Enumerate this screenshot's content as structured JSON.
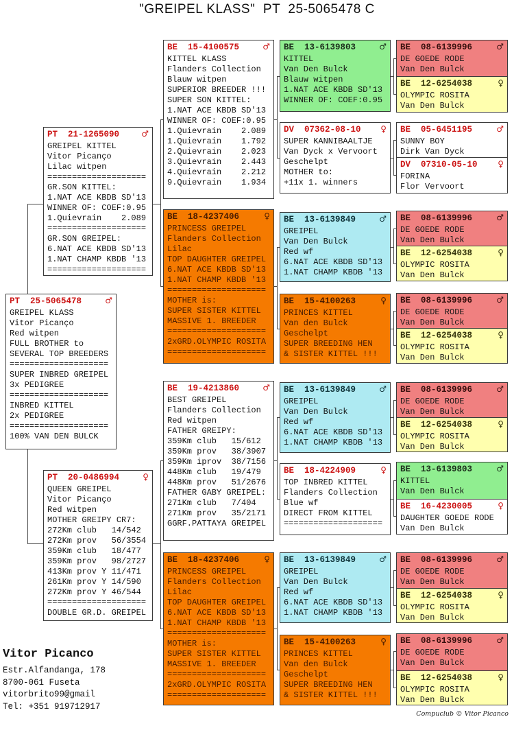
{
  "title": "\"GREIPEL KLASS\"  PT  25-5065478 C",
  "colors": {
    "orange": "#F57A00",
    "green": "#90EE90",
    "cyan": "#AEEAF2",
    "pink": "#F08080",
    "yellow": "#FFFFAE",
    "ring_red": "#CC1414",
    "line": "#4A4A4A"
  },
  "footer": {
    "name": "Vitor Picanco",
    "address1": "Estr.Alfandanga, 178",
    "address2": "8700-061 Fuseta",
    "email": "vitorbrito99@gmail",
    "phone": "Tel: +351 919712917",
    "credit": "Compuclub © Vitor Picanco"
  },
  "boxes": [
    {
      "id": "subject",
      "ring": "PT  25-5065478",
      "sex": "♂",
      "color": "white",
      "lines": [
        "GREIPEL KLASS",
        "Vitor Picanço",
        "Red witpen",
        "FULL BROTHER to",
        "SEVERAL TOP BREEDERS",
        "====================",
        "SUPER INBRED GREIPEL",
        "3x PEDIGREE",
        "====================",
        "INBRED KITTEL",
        "2x PEDIGREE",
        "====================",
        "100% VAN DEN BULCK"
      ]
    },
    {
      "id": "sire",
      "ring": "PT  21-1265090",
      "sex": "♂",
      "color": "white",
      "lines": [
        "GREIPEL KITTEL",
        "Vitor Picanço",
        "Lilac witpen",
        "====================",
        "GR.SON KITTEL:",
        "1.NAT ACE KBDB SD'13",
        "WINNER OF: COEF:0.95",
        "1.Quievrain    2.089",
        "====================",
        "GR.SON GREIPEL:",
        "6.NAT ACE KBDB SD'13",
        "1.NAT CHAMP KBDB '13",
        "===================="
      ]
    },
    {
      "id": "dam",
      "ring": "PT  20-0486994",
      "sex": "♀",
      "color": "white",
      "lines": [
        "QUEEN GREIPEL",
        "Vitor Picanço",
        "Red witpen",
        "MOTHER GREIPY CR7:",
        "272Km club   14/542",
        "272Km prov   56/3554",
        "359Km club   18/477",
        "359Km prov   98/2727",
        "413Km prov Y 11/471",
        "261Km prov Y 14/590",
        "272Km prov Y 46/544",
        "====================",
        "DOUBLE GR.D. GREIPEL"
      ]
    },
    {
      "id": "g1",
      "ring": "BE  15-4100575",
      "sex": "♂",
      "color": "white",
      "lines": [
        "KITTEL KLASS",
        "Flanders Collection",
        "Blauw witpen",
        "SUPERIOR BREEDER !!!",
        "SUPER SON KITTEL:",
        "1.NAT ACE KBDB SD'13",
        "WINNER OF: COEF:0.95",
        "1.Quievrain    2.089",
        "1.Quievrain    1.792",
        "2.Quievrain    2.023",
        "3.Quievrain    2.443",
        "4.Quievrain    2.212",
        "9.Quievrain    1.934"
      ]
    },
    {
      "id": "g2",
      "ring": "BE  18-4237406",
      "sex": "♀",
      "color": "orange",
      "lines": [
        "PRINCESS GREIPEL",
        "Flanders Collection",
        "Lilac",
        "TOP DAUGHTER GREIPEL",
        "6.NAT ACE KBDB SD'13",
        "1.NAT CHAMP KBDB '13",
        "====================",
        "MOTHER is:",
        "SUPER SISTER KITTEL",
        "MASSIVE 1. BREEDER",
        "====================",
        "2xGRD.OLYMPIC ROSITA",
        "===================="
      ]
    },
    {
      "id": "g3",
      "ring": "BE  19-4213860",
      "sex": "♂",
      "color": "white",
      "lines": [
        "BEST GREIPEL",
        "Flanders Collection",
        "Red witpen",
        "FATHER GREIPY:",
        "359Km club   15/612",
        "359Km prov   38/3907",
        "359Km iprov  38/7156",
        "448Km club   19/479",
        "448Km prov   51/2676",
        "FATHER GABY GREIPEL:",
        "271Km club   7/404",
        "271Km prov   35/2171",
        "GGRF.PATTAYA GREIPEL"
      ]
    },
    {
      "id": "g4",
      "ring": "BE  18-4237406",
      "sex": "♀",
      "color": "orange",
      "lines": [
        "PRINCESS GREIPEL",
        "Flanders Collection",
        "Lilac",
        "TOP DAUGHTER GREIPEL",
        "6.NAT ACE KBDB SD'13",
        "1.NAT CHAMP KBDB '13",
        "====================",
        "MOTHER is:",
        "SUPER SISTER KITTEL",
        "MASSIVE 1. BREEDER",
        "====================",
        "2xGRD.OLYMPIC ROSITA",
        "===================="
      ]
    },
    {
      "id": "gg1",
      "ring": "BE  13-6139803",
      "sex": "♂",
      "color": "green",
      "lines": [
        "KITTEL",
        "Van Den Bulck",
        "Blauw witpen",
        "1.NAT ACE KBDB SD'13",
        "WINNER OF: COEF:0.95"
      ]
    },
    {
      "id": "gg2",
      "ring": "DV  07362-08-10",
      "sex": "♀",
      "color": "white",
      "lines": [
        "SUPER KANNIBAALTJE",
        "Van Dyck x Vervoort",
        "Geschelpt",
        "MOTHER to:",
        "+11x 1. winners"
      ]
    },
    {
      "id": "gg3",
      "ring": "BE  13-6139849",
      "sex": "♂",
      "color": "cyan",
      "lines": [
        "GREIPEL",
        "Van Den Bulck",
        "Red wf",
        "6.NAT ACE KBDB SD'13",
        "1.NAT CHAMP KBDB '13"
      ]
    },
    {
      "id": "gg4",
      "ring": "BE  15-4100263",
      "sex": "♀",
      "color": "orange",
      "lines": [
        "PRINCES KITTEL",
        "Van den Bulck",
        "Geschelpt",
        "SUPER BREEDING HEN",
        "& SISTER KITTEL !!!"
      ]
    },
    {
      "id": "gg5",
      "ring": "BE  13-6139849",
      "sex": "♂",
      "color": "cyan",
      "lines": [
        "GREIPEL",
        "Van Den Bulck",
        "Red wf",
        "6.NAT ACE KBDB SD'13",
        "1.NAT CHAMP KBDB '13"
      ]
    },
    {
      "id": "gg6",
      "ring": "BE  18-4224909",
      "sex": "♀",
      "color": "white",
      "lines": [
        "TOP INBRED KITTEL",
        "Flanders Collection",
        "Blue wf",
        "DIRECT FROM KITTEL",
        "===================="
      ]
    },
    {
      "id": "gg7",
      "ring": "BE  13-6139849",
      "sex": "♂",
      "color": "cyan",
      "lines": [
        "GREIPEL",
        "Van Den Bulck",
        "Red wf",
        "6.NAT ACE KBDB SD'13",
        "1.NAT CHAMP KBDB '13"
      ]
    },
    {
      "id": "gg8",
      "ring": "BE  15-4100263",
      "sex": "♀",
      "color": "orange",
      "lines": [
        "PRINCES KITTEL",
        "Van den Bulck",
        "Geschelpt",
        "SUPER BREEDING HEN",
        "& SISTER KITTEL !!!"
      ]
    },
    {
      "id": "ggg1",
      "ring": "BE  08-6139996",
      "sex": "♂",
      "color": "pink",
      "lines": [
        "DE GOEDE RODE",
        "Van Den Bulck"
      ]
    },
    {
      "id": "ggg2",
      "ring": "BE  12-6254038",
      "sex": "♀",
      "color": "yellow",
      "lines": [
        "OLYMPIC ROSITA",
        "Van Den Bulck"
      ]
    },
    {
      "id": "ggg3",
      "ring": "BE  05-6451195",
      "sex": "♂",
      "color": "white",
      "lines": [
        "SUNNY BOY",
        "Dirk Van Dyck"
      ]
    },
    {
      "id": "ggg4",
      "ring": "DV  07310-05-10",
      "sex": "♀",
      "color": "white",
      "lines": [
        "FORINA",
        "Flor Vervoort"
      ]
    },
    {
      "id": "ggg5",
      "ring": "BE  08-6139996",
      "sex": "♂",
      "color": "pink",
      "lines": [
        "DE GOEDE RODE",
        "Van Den Bulck"
      ]
    },
    {
      "id": "ggg6",
      "ring": "BE  12-6254038",
      "sex": "♀",
      "color": "yellow",
      "lines": [
        "OLYMPIC ROSITA",
        "Van Den Bulck"
      ]
    },
    {
      "id": "ggg7",
      "ring": "BE  08-6139996",
      "sex": "♂",
      "color": "pink",
      "lines": [
        "DE GOEDE RODE",
        "Van Den Bulck"
      ]
    },
    {
      "id": "ggg8",
      "ring": "BE  12-6254038",
      "sex": "♀",
      "color": "yellow",
      "lines": [
        "OLYMPIC ROSITA",
        "Van Den Bulck"
      ]
    },
    {
      "id": "ggg9",
      "ring": "BE  08-6139996",
      "sex": "♂",
      "color": "pink",
      "lines": [
        "DE GOEDE RODE",
        "Van Den Bulck"
      ]
    },
    {
      "id": "ggg10",
      "ring": "BE  12-6254038",
      "sex": "♀",
      "color": "yellow",
      "lines": [
        "OLYMPIC ROSITA",
        "Van Den Bulck"
      ]
    },
    {
      "id": "ggg11",
      "ring": "BE  13-6139803",
      "sex": "♂",
      "color": "green",
      "lines": [
        "KITTEL",
        "Van Den Bulck"
      ]
    },
    {
      "id": "ggg12",
      "ring": "BE  16-4230005",
      "sex": "♀",
      "color": "white",
      "lines": [
        "DAUGHTER GOEDE RODE",
        "Van Den Bulck"
      ]
    },
    {
      "id": "ggg13",
      "ring": "BE  08-6139996",
      "sex": "♂",
      "color": "pink",
      "lines": [
        "DE GOEDE RODE",
        "Van Den Bulck"
      ]
    },
    {
      "id": "ggg14",
      "ring": "BE  12-6254038",
      "sex": "♀",
      "color": "yellow",
      "lines": [
        "OLYMPIC ROSITA",
        "Van Den Bulck"
      ]
    },
    {
      "id": "ggg15",
      "ring": "BE  08-6139996",
      "sex": "♂",
      "color": "pink",
      "lines": [
        "DE GOEDE RODE",
        "Van Den Bulck"
      ]
    },
    {
      "id": "ggg16",
      "ring": "BE  12-6254038",
      "sex": "♀",
      "color": "yellow",
      "lines": [
        "OLYMPIC ROSITA",
        "Van Den Bulck"
      ]
    }
  ]
}
